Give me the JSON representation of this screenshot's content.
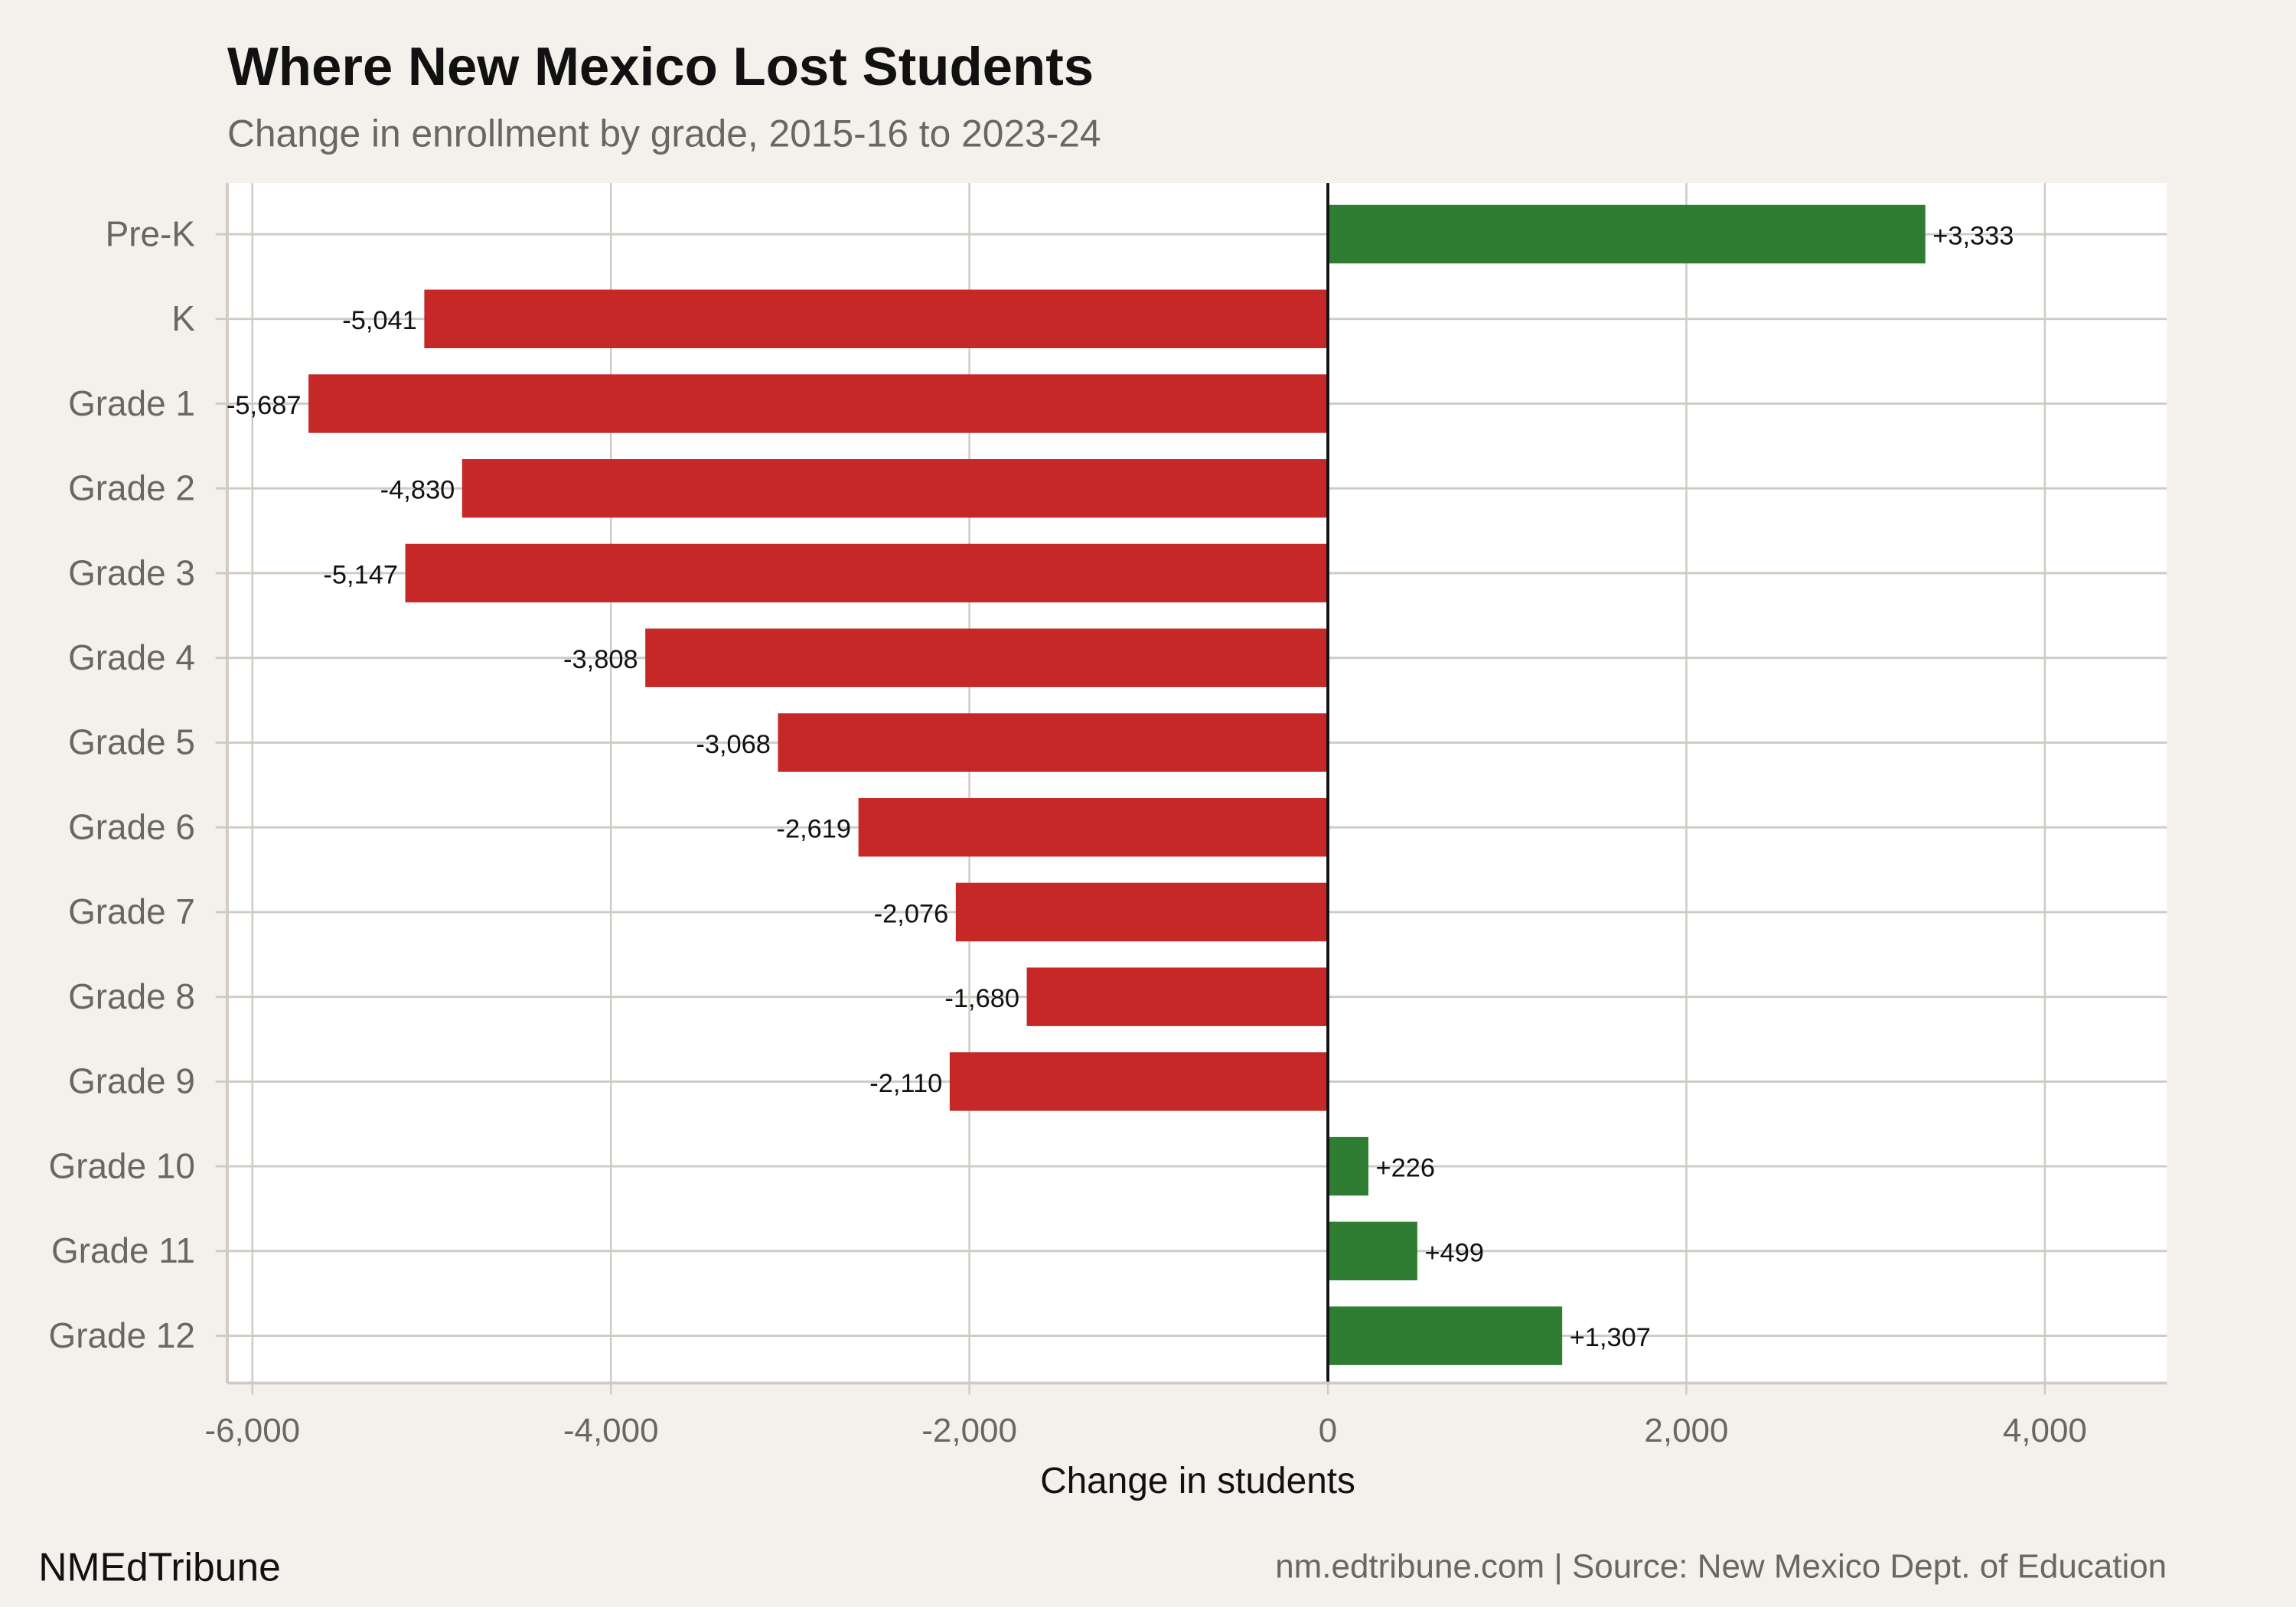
{
  "chart_data": {
    "type": "bar",
    "orientation": "horizontal",
    "title": "Where New Mexico Lost Students",
    "subtitle": "Change in enrollment by grade, 2015-16 to 2023-24",
    "xlabel": "Change in students",
    "ylabel": "",
    "categories": [
      "Pre-K",
      "K",
      "Grade 1",
      "Grade 2",
      "Grade 3",
      "Grade 4",
      "Grade 5",
      "Grade 6",
      "Grade 7",
      "Grade 8",
      "Grade 9",
      "Grade 10",
      "Grade 11",
      "Grade 12"
    ],
    "values": [
      3333,
      -5041,
      -5687,
      -4830,
      -5147,
      -3808,
      -3068,
      -2619,
      -2076,
      -1680,
      -2110,
      226,
      499,
      1307
    ],
    "data_labels": [
      "+3,333",
      "-5,041",
      "-5,687",
      "-4,830",
      "-5,147",
      "-3,808",
      "-3,068",
      "-2,619",
      "-2,076",
      "-1,680",
      "-2,110",
      "+226",
      "+499",
      "+1,307"
    ],
    "xlim": [
      -6140,
      4680
    ],
    "xticks": [
      -6000,
      -4000,
      -2000,
      0,
      2000,
      4000
    ],
    "xtick_labels": [
      "-6,000",
      "-4,000",
      "-2,000",
      "0",
      "2,000",
      "4,000"
    ],
    "grid": true,
    "colors": {
      "positive": "#2e7d32",
      "negative": "#c62828",
      "background": "#f4f1ec",
      "panel": "#ffffff",
      "grid": "#cfcbc4"
    }
  },
  "footer": {
    "brand": "NMEdTribune",
    "source": "nm.edtribune.com | Source: New Mexico Dept. of Education"
  }
}
